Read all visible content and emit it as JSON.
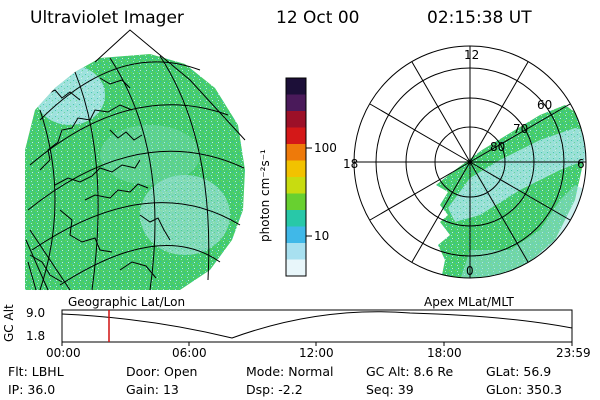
{
  "header": {
    "title": "Ultraviolet Imager",
    "date": "12 Oct 00",
    "time": "02:15:38 UT"
  },
  "colorbar": {
    "unit_label": "photon cm⁻²s⁻¹",
    "ticks": [
      "100",
      "10"
    ],
    "colors": [
      "#1c0f38",
      "#4a1a5a",
      "#9c1028",
      "#d41818",
      "#ee7a0a",
      "#f2c200",
      "#c8dc10",
      "#68d030",
      "#28c8a8",
      "#40b8e8",
      "#a8e0f0",
      "#e8f6fa"
    ]
  },
  "geo_panel": {
    "label": "Geographic Lat/Lon"
  },
  "polar_panel": {
    "label": "Apex MLat/MLT",
    "mlt_labels": [
      "12",
      "18",
      "6",
      "0"
    ],
    "lat_labels": [
      "60",
      "70",
      "80"
    ]
  },
  "altitude_plot": {
    "ylabel": "GC Alt",
    "yticks": [
      "9.0",
      "1.8"
    ],
    "xticks": [
      "00:00",
      "06:00",
      "12:00",
      "18:00",
      "23:59"
    ]
  },
  "footer": {
    "row1": [
      {
        "key": "Flt:",
        "value": "LBHL"
      },
      {
        "key": "Door:",
        "value": "Open"
      },
      {
        "key": "Mode:",
        "value": "Normal"
      },
      {
        "key": "GC Alt:",
        "value": "8.6 Re"
      },
      {
        "key": "GLat:",
        "value": "56.9"
      }
    ],
    "row2": [
      {
        "key": "IP:",
        "value": "36.0"
      },
      {
        "key": "Gain:",
        "value": "13"
      },
      {
        "key": "Dsp:",
        "value": "-2.2"
      },
      {
        "key": "Seq:",
        "value": "39"
      },
      {
        "key": "GLon:",
        "value": "350.3"
      }
    ]
  },
  "palette": {
    "aurora_green": "#3cd070",
    "aurora_cyan": "#40c8c8",
    "aurora_light": "#b8ecec",
    "marker_red": "#d01010"
  }
}
